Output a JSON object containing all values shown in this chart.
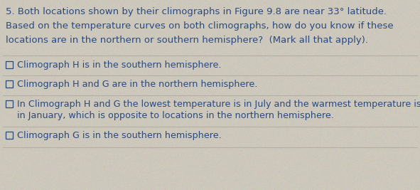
{
  "question_number": "5.",
  "question_text_line1": "Both locations shown by their climographs in Figure 9.8 are near 33° latitude.",
  "question_text_line2": "Based on the temperature curves on both climographs, how do you know if these",
  "question_text_line3": "locations are in the northern or southern hemisphere?  (Mark all that apply).",
  "options": [
    "Climograph H is in the southern hemisphere.",
    "Climograph H and G are in the northern hemisphere.",
    "In Climograph H and G the lowest temperature is in July and the warmest temperature is\nin January, which is opposite to locations in the northern hemisphere.",
    "Climograph G is in the southern hemisphere."
  ],
  "bg_color": "#cdc8bc",
  "text_color": "#2a4a7f",
  "line_color": "#b5afa3",
  "font_size_question": 9.5,
  "font_size_options": 9.2
}
